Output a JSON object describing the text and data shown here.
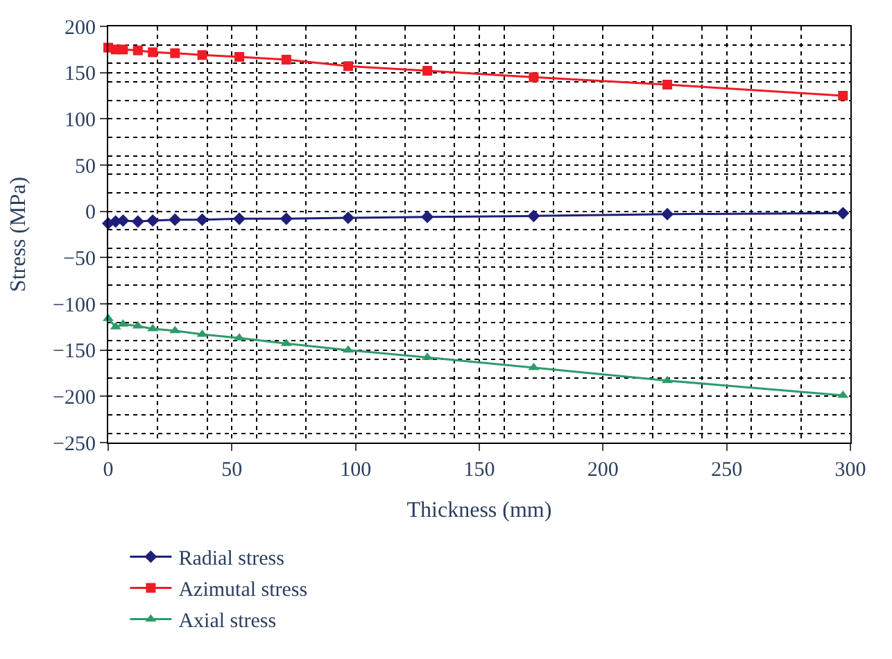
{
  "chart_data": {
    "type": "line",
    "xlabel": "Thickness (mm)",
    "ylabel": "Stress (MPa)",
    "x": [
      0,
      3,
      6,
      12,
      18,
      27,
      38,
      53,
      72,
      97,
      129,
      172,
      226,
      297
    ],
    "series": [
      {
        "name": "Radial stress",
        "color": "#1f1f7a",
        "marker": "diamond",
        "values": [
          -13,
          -11,
          -10,
          -11,
          -10,
          -9,
          -9,
          -8,
          -8,
          -7,
          -6,
          -5,
          -3,
          -2
        ]
      },
      {
        "name": "Azimutal stress",
        "color": "#ee1c25",
        "marker": "square",
        "values": [
          177,
          175,
          175,
          174,
          172,
          171,
          169,
          167,
          164,
          157,
          152,
          145,
          137,
          125
        ]
      },
      {
        "name": "Axial stress",
        "color": "#2e9b6b",
        "marker": "triangle",
        "values": [
          -116,
          -125,
          -122,
          -124,
          -127,
          -129,
          -133,
          -137,
          -143,
          -150,
          -158,
          -169,
          -183,
          -199
        ]
      }
    ],
    "xlim": [
      0,
      300
    ],
    "xticks": [
      0,
      50,
      100,
      150,
      200,
      250,
      300
    ],
    "ylim": [
      -250,
      200
    ],
    "yticks": [
      -250,
      -200,
      -150,
      -100,
      -50,
      0,
      50,
      100,
      150,
      200
    ],
    "grid": true,
    "legend": "bottom",
    "line_style": "solid"
  }
}
